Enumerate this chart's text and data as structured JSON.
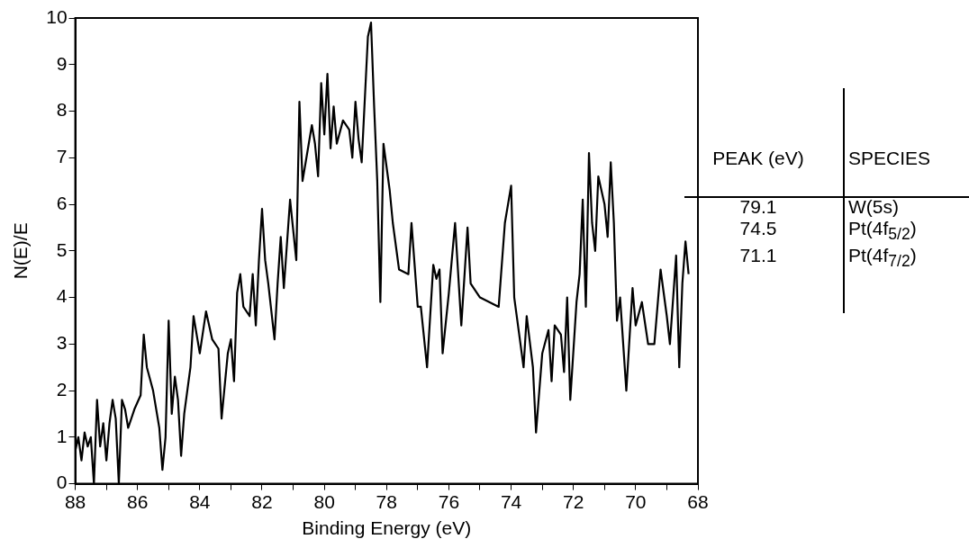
{
  "chart_data": {
    "type": "line",
    "xlabel": "Binding Energy (eV)",
    "ylabel": "N(E)/E",
    "x": [
      88.0,
      87.9,
      87.8,
      87.7,
      87.6,
      87.5,
      87.4,
      87.3,
      87.2,
      87.1,
      87.0,
      86.9,
      86.8,
      86.7,
      86.6,
      86.5,
      86.4,
      86.3,
      86.1,
      85.9,
      85.8,
      85.7,
      85.5,
      85.3,
      85.2,
      85.1,
      85.0,
      84.9,
      84.8,
      84.7,
      84.6,
      84.5,
      84.3,
      84.2,
      84.0,
      83.8,
      83.6,
      83.4,
      83.3,
      83.1,
      83.0,
      82.9,
      82.8,
      82.7,
      82.6,
      82.4,
      82.3,
      82.2,
      82.1,
      82.0,
      81.9,
      81.8,
      81.6,
      81.5,
      81.4,
      81.3,
      81.1,
      80.9,
      80.8,
      80.7,
      80.6,
      80.4,
      80.3,
      80.2,
      80.1,
      80.0,
      79.9,
      79.8,
      79.7,
      79.6,
      79.4,
      79.2,
      79.1,
      79.0,
      78.9,
      78.8,
      78.6,
      78.5,
      78.4,
      78.3,
      78.2,
      78.1,
      77.9,
      77.8,
      77.6,
      77.3,
      77.2,
      77.1,
      77.0,
      76.9,
      76.7,
      76.5,
      76.4,
      76.3,
      76.2,
      76.0,
      75.8,
      75.6,
      75.4,
      75.3,
      75.0,
      74.7,
      74.4,
      74.2,
      74.0,
      73.9,
      73.8,
      73.6,
      73.5,
      73.3,
      73.2,
      73.0,
      72.8,
      72.7,
      72.6,
      72.4,
      72.3,
      72.2,
      72.1,
      71.9,
      71.8,
      71.7,
      71.6,
      71.5,
      71.4,
      71.3,
      71.2,
      71.0,
      70.9,
      70.8,
      70.7,
      70.6,
      70.5,
      70.4,
      70.3,
      70.1,
      70.0,
      69.8,
      69.6,
      69.4,
      69.2,
      69.0,
      68.9,
      68.7,
      68.6,
      68.5,
      68.4,
      68.3
    ],
    "series": [
      {
        "color": "#000000",
        "values": [
          0.7,
          1.0,
          0.5,
          1.1,
          0.8,
          1.0,
          0.0,
          1.8,
          0.8,
          1.3,
          0.5,
          1.3,
          1.8,
          1.4,
          0.0,
          1.8,
          1.6,
          1.2,
          1.6,
          1.9,
          3.2,
          2.5,
          2.0,
          1.2,
          0.3,
          1.0,
          3.5,
          1.5,
          2.3,
          1.8,
          0.6,
          1.5,
          2.5,
          3.6,
          2.8,
          3.7,
          3.1,
          2.9,
          1.4,
          2.8,
          3.1,
          2.2,
          4.1,
          4.5,
          3.8,
          3.6,
          4.5,
          3.4,
          4.8,
          5.9,
          4.8,
          4.3,
          3.1,
          4.3,
          5.3,
          4.2,
          6.1,
          4.8,
          8.2,
          6.5,
          6.9,
          7.7,
          7.3,
          6.6,
          8.6,
          7.5,
          8.8,
          7.2,
          8.1,
          7.3,
          7.8,
          7.6,
          7.0,
          8.2,
          7.4,
          6.9,
          9.6,
          9.9,
          8.1,
          6.5,
          3.9,
          7.3,
          6.3,
          5.6,
          4.6,
          4.5,
          5.6,
          4.7,
          3.8,
          3.8,
          2.5,
          4.7,
          4.4,
          4.6,
          2.8,
          4.1,
          5.6,
          3.4,
          5.5,
          4.3,
          4.0,
          3.9,
          3.8,
          5.6,
          6.4,
          4.0,
          3.5,
          2.5,
          3.6,
          2.5,
          1.1,
          2.8,
          3.3,
          2.2,
          3.4,
          3.2,
          2.4,
          4.0,
          1.8,
          3.9,
          4.5,
          6.1,
          3.8,
          7.1,
          5.6,
          5.0,
          6.6,
          6.0,
          5.3,
          6.9,
          5.6,
          3.5,
          4.0,
          3.0,
          2.0,
          4.2,
          3.4,
          3.9,
          3.0,
          3.0,
          4.6,
          3.6,
          3.0,
          4.9,
          2.5,
          4.3,
          5.2,
          4.5
        ]
      }
    ],
    "xlim": [
      88,
      68
    ],
    "xticks": [
      88,
      {
        "value": 87,
        "label": null
      },
      86,
      {
        "value": 85,
        "label": null
      },
      84,
      {
        "value": 83,
        "label": null
      },
      82,
      {
        "value": 81,
        "label": null
      },
      80,
      {
        "value": 79,
        "label": null
      },
      78,
      {
        "value": 77,
        "label": null
      },
      76,
      {
        "value": 75,
        "label": null
      },
      74,
      {
        "value": 73,
        "label": null
      },
      72,
      {
        "value": 71,
        "label": null
      },
      70,
      {
        "value": 69,
        "label": null
      },
      68
    ],
    "ylim": [
      0,
      10
    ],
    "yticks": [
      0,
      1,
      2,
      3,
      4,
      5,
      6,
      7,
      8,
      9,
      10
    ],
    "annotations": [
      "PEAK (eV)",
      "SPECIES",
      "79.1",
      "W(5s)",
      "74.5",
      "Pt(4f$_{5/2}$)",
      "71.1",
      "Pt(4f$_{7/2}$)"
    ],
    "grid": false,
    "legend": false,
    "marker": "none",
    "line_style": "solid"
  }
}
